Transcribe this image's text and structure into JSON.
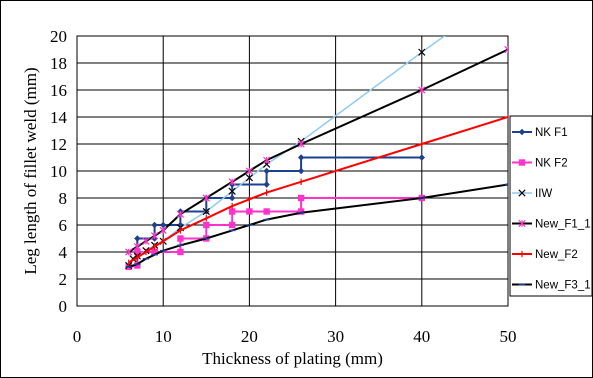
{
  "chart_data": {
    "type": "line",
    "xlabel": "Thickness of plating (mm)",
    "ylabel": "Leg length of fillet weld (mm)",
    "xlim": [
      0,
      50
    ],
    "ylim": [
      0,
      20
    ],
    "x_ticks": [
      "0",
      "10",
      "20",
      "30",
      "40",
      "50"
    ],
    "y_ticks": [
      "0",
      "2",
      "4",
      "6",
      "8",
      "10",
      "12",
      "14",
      "16",
      "18",
      "20"
    ],
    "grid": "horizontal and vertical",
    "legend": "right",
    "series": [
      {
        "name": "NK F1",
        "color": "#1f3f8f",
        "marker": "diamond",
        "points": [
          [
            6,
            2.9
          ],
          [
            7,
            3
          ],
          [
            7,
            5
          ],
          [
            9,
            5
          ],
          [
            9,
            6
          ],
          [
            10,
            6
          ],
          [
            12,
            6
          ],
          [
            12,
            7
          ],
          [
            15,
            7
          ],
          [
            15,
            8
          ],
          [
            18,
            8
          ],
          [
            18,
            9
          ],
          [
            22,
            9
          ],
          [
            22,
            10
          ],
          [
            26,
            10
          ],
          [
            26,
            11
          ],
          [
            40,
            11
          ]
        ]
      },
      {
        "name": "NK F2",
        "color": "#ff33cc",
        "marker": "square",
        "points": [
          [
            6,
            2.9
          ],
          [
            7,
            3
          ],
          [
            7,
            4
          ],
          [
            9,
            4
          ],
          [
            9,
            4
          ],
          [
            12,
            4
          ],
          [
            12,
            5
          ],
          [
            15,
            5
          ],
          [
            15,
            6
          ],
          [
            18,
            6
          ],
          [
            18,
            7
          ],
          [
            20,
            7
          ],
          [
            22,
            7
          ],
          [
            26,
            7
          ],
          [
            26,
            8
          ],
          [
            40,
            8
          ]
        ]
      },
      {
        "name": "IIW",
        "color": "#8fcaf0",
        "marker": "x",
        "points": [
          [
            6,
            3
          ],
          [
            6.5,
            3.5
          ],
          [
            7,
            3.7
          ],
          [
            8,
            4.1
          ],
          [
            9,
            4.5
          ],
          [
            10,
            4.8
          ],
          [
            12,
            5.8
          ],
          [
            15,
            7
          ],
          [
            18,
            8.5
          ],
          [
            20,
            9.5
          ],
          [
            22,
            10.5
          ],
          [
            26,
            12.2
          ],
          [
            40,
            18.8
          ],
          [
            43.5,
            20.4
          ]
        ]
      },
      {
        "name": "New_F1_1",
        "color": "#000000",
        "marker": "star",
        "points": [
          [
            6,
            4
          ],
          [
            7,
            4.4
          ],
          [
            8,
            4.8
          ],
          [
            9,
            5.2
          ],
          [
            10,
            5.6
          ],
          [
            12,
            6.8
          ],
          [
            15,
            8
          ],
          [
            18,
            9.2
          ],
          [
            20,
            10
          ],
          [
            22,
            10.8
          ],
          [
            26,
            12
          ],
          [
            40,
            16
          ],
          [
            50,
            19
          ]
        ]
      },
      {
        "name": "New_F2",
        "color": "#ff0000",
        "marker": "plus",
        "points": [
          [
            6,
            3.2
          ],
          [
            7,
            3.6
          ],
          [
            8,
            4
          ],
          [
            9,
            4.4
          ],
          [
            10,
            4.8
          ],
          [
            12,
            5.6
          ],
          [
            15,
            6.5
          ],
          [
            18,
            7.4
          ],
          [
            20,
            7.9
          ],
          [
            22,
            8.4
          ],
          [
            26,
            9.2
          ],
          [
            40,
            12
          ],
          [
            50,
            14
          ]
        ]
      },
      {
        "name": "New_F3_1",
        "color": "#000000",
        "marker": "dash",
        "points": [
          [
            6,
            2.9
          ],
          [
            7,
            3.1
          ],
          [
            8,
            3.5
          ],
          [
            9,
            3.8
          ],
          [
            10,
            4.1
          ],
          [
            12,
            4.5
          ],
          [
            15,
            5
          ],
          [
            18,
            5.6
          ],
          [
            20,
            6
          ],
          [
            22,
            6.4
          ],
          [
            26,
            6.9
          ],
          [
            40,
            8
          ],
          [
            50,
            9
          ]
        ]
      }
    ]
  }
}
